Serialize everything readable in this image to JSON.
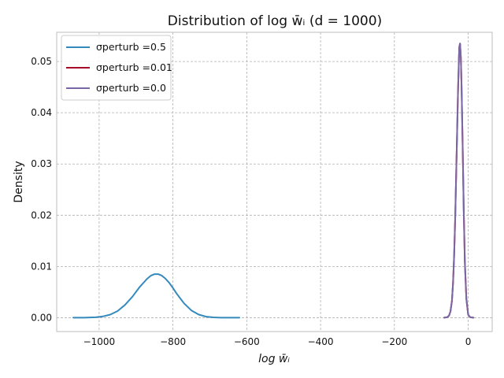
{
  "chart_data": {
    "type": "line",
    "title": "Distribution of log w̄ᵢ (d = 1000)",
    "xlabel": "log w̄ᵢ",
    "ylabel": "Density",
    "xlim": [
      -1115,
      65
    ],
    "ylim": [
      -0.0027,
      0.0557
    ],
    "xticks": [
      -1000,
      -800,
      -600,
      -400,
      -200,
      0
    ],
    "xtick_labels": [
      "−1000",
      "−800",
      "−600",
      "−400",
      "−200",
      "0"
    ],
    "yticks": [
      0.0,
      0.01,
      0.02,
      0.03,
      0.04,
      0.05
    ],
    "ytick_labels": [
      "0.00",
      "0.01",
      "0.02",
      "0.03",
      "0.04",
      "0.05"
    ],
    "grid": true,
    "legend": "top-left",
    "series": [
      {
        "name": "σperturb =0.5",
        "color": "#348ABD",
        "x": [
          -1070,
          -1040,
          -1010,
          -990,
          -970,
          -950,
          -930,
          -910,
          -890,
          -870,
          -860,
          -850,
          -840,
          -830,
          -820,
          -810,
          -800,
          -790,
          -770,
          -750,
          -730,
          -710,
          -690,
          -670,
          -650,
          -620
        ],
        "y": [
          0.0,
          1e-05,
          8e-05,
          0.00025,
          0.0006,
          0.0013,
          0.0025,
          0.0041,
          0.006,
          0.0076,
          0.0082,
          0.0085,
          0.0085,
          0.0082,
          0.0076,
          0.0068,
          0.0058,
          0.0047,
          0.0028,
          0.0014,
          0.0006,
          0.0002,
          6e-05,
          1e-05,
          0.0,
          0.0
        ]
      },
      {
        "name": "σperturb =0.01",
        "color": "#A60628",
        "x": [
          -65,
          -57,
          -52,
          -48,
          -44,
          -41,
          -38,
          -35,
          -32,
          -30,
          -28,
          -27,
          -26,
          -25,
          -24,
          -22,
          -20,
          -18,
          -15,
          -12,
          -9,
          -5,
          0,
          5,
          14
        ],
        "y": [
          0.0,
          0.0001,
          0.0004,
          0.0012,
          0.0033,
          0.0068,
          0.0122,
          0.0198,
          0.0295,
          0.0363,
          0.0428,
          0.0458,
          0.0484,
          0.051,
          0.0529,
          0.0535,
          0.0508,
          0.0452,
          0.0335,
          0.0208,
          0.0108,
          0.0037,
          0.0006,
          0.0001,
          0.0
        ]
      },
      {
        "name": "σperturb =0.0",
        "color": "#7A68A6",
        "x": [
          -65,
          -57,
          -52,
          -48,
          -44,
          -41,
          -38,
          -35,
          -32,
          -30,
          -28,
          -27,
          -26,
          -25,
          -24,
          -22,
          -20,
          -18,
          -15,
          -12,
          -9,
          -5,
          0,
          5,
          14
        ],
        "y": [
          0.0,
          0.0001,
          0.0004,
          0.0012,
          0.0033,
          0.0068,
          0.0122,
          0.0198,
          0.0295,
          0.0363,
          0.0428,
          0.0458,
          0.0484,
          0.051,
          0.0529,
          0.0535,
          0.0508,
          0.0452,
          0.0335,
          0.0208,
          0.0108,
          0.0037,
          0.0006,
          0.0001,
          0.0
        ]
      }
    ]
  }
}
